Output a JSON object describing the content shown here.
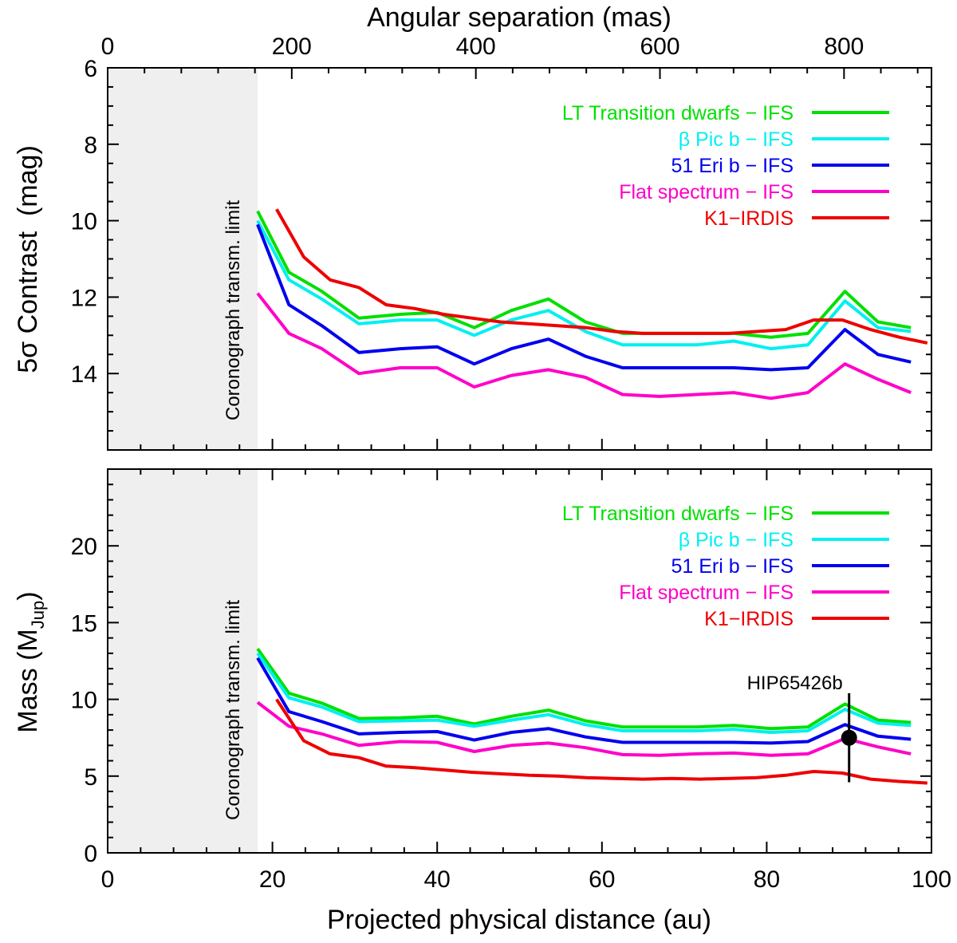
{
  "chart_data": [
    {
      "type": "line",
      "panel": "top",
      "ylabel": "5σ Contrast  (mag)",
      "ylabel_prefix": "5",
      "ylabel_sigma": "σ",
      "ylabel_rest": " Contrast  (mag)",
      "x_top_label": "Angular separation (mas)",
      "x_top_ticks": [
        "0",
        "200",
        "400",
        "600",
        "800"
      ],
      "x_top_tick_values": [
        0,
        200,
        400,
        600,
        800
      ],
      "mas_per_au": 8.95,
      "xlim": [
        0,
        100
      ],
      "ylim": [
        16,
        6
      ],
      "y_inverted": true,
      "y_ticks": [
        "6",
        "8",
        "10",
        "12",
        "14"
      ],
      "y_tick_values": [
        6,
        8,
        10,
        12,
        14
      ],
      "shaded_region": {
        "x_range": [
          0,
          18.2
        ],
        "label": "Coronograph transm. limit"
      },
      "legend_position": "top-right",
      "series": [
        {
          "name": "LT Transition dwarfs − IFS",
          "color": "#00e000",
          "x": [
            18.2,
            22.0,
            26.0,
            30.5,
            35.5,
            40.0,
            44.5,
            49.0,
            53.5,
            58.0,
            62.5,
            67.0,
            71.5,
            76.0,
            80.5,
            85.0,
            89.5,
            93.5,
            97.5
          ],
          "y": [
            9.75,
            11.35,
            11.85,
            12.55,
            12.45,
            12.4,
            12.8,
            12.35,
            12.05,
            12.65,
            12.95,
            12.95,
            12.95,
            12.95,
            13.05,
            12.95,
            11.85,
            12.65,
            12.8
          ]
        },
        {
          "name": "β Pic b − IFS",
          "name_symbol": "β",
          "name_rest": " Pic b − IFS",
          "color": "#00f0f0",
          "x": [
            18.2,
            22.0,
            26.0,
            30.5,
            35.5,
            40.0,
            44.5,
            49.0,
            53.5,
            58.0,
            62.5,
            67.0,
            71.5,
            76.0,
            80.5,
            85.0,
            89.5,
            93.5,
            97.5
          ],
          "y": [
            10.0,
            11.55,
            12.05,
            12.7,
            12.6,
            12.6,
            13.0,
            12.6,
            12.35,
            12.9,
            13.25,
            13.25,
            13.25,
            13.15,
            13.35,
            13.25,
            12.1,
            12.8,
            12.9
          ]
        },
        {
          "name": "51 Eri b − IFS",
          "color": "#0000ee",
          "x": [
            18.2,
            22.0,
            26.0,
            30.5,
            35.5,
            40.0,
            44.5,
            49.0,
            53.5,
            58.0,
            62.5,
            67.0,
            71.5,
            76.0,
            80.5,
            85.0,
            89.5,
            93.5,
            97.5
          ],
          "y": [
            10.1,
            12.2,
            12.75,
            13.45,
            13.35,
            13.3,
            13.75,
            13.35,
            13.1,
            13.55,
            13.85,
            13.85,
            13.85,
            13.85,
            13.9,
            13.85,
            12.85,
            13.5,
            13.7
          ]
        },
        {
          "name": "Flat spectrum − IFS",
          "color": "#ff00c8",
          "x": [
            18.2,
            22.0,
            26.0,
            30.5,
            35.5,
            40.0,
            44.5,
            49.0,
            53.5,
            58.0,
            62.5,
            67.0,
            71.5,
            76.0,
            80.5,
            85.0,
            89.5,
            93.5,
            97.5
          ],
          "y": [
            11.9,
            12.95,
            13.35,
            14.0,
            13.85,
            13.85,
            14.35,
            14.05,
            13.9,
            14.1,
            14.55,
            14.6,
            14.55,
            14.5,
            14.65,
            14.5,
            13.75,
            14.15,
            14.5
          ]
        },
        {
          "name": "K1−IRDIS",
          "color": "#ee0000",
          "x": [
            20.5,
            23.8,
            27.0,
            30.5,
            33.8,
            37.3,
            40.8,
            44.2,
            47.7,
            51.2,
            54.6,
            58.1,
            61.5,
            65.0,
            68.5,
            71.9,
            75.4,
            78.8,
            82.3,
            85.7,
            89.2,
            92.6,
            96.1,
            99.5
          ],
          "y": [
            9.7,
            10.95,
            11.55,
            11.75,
            12.2,
            12.3,
            12.45,
            12.55,
            12.65,
            12.7,
            12.75,
            12.8,
            12.9,
            12.95,
            12.95,
            12.95,
            12.95,
            12.9,
            12.85,
            12.6,
            12.6,
            12.85,
            13.05,
            13.2
          ]
        }
      ]
    },
    {
      "type": "line",
      "panel": "bottom",
      "ylabel": "Mass (MJup)",
      "ylabel_main": "Mass (M",
      "ylabel_sub": "Jup",
      "ylabel_close": ")",
      "xlabel": "Projected physical distance (au)",
      "xlim": [
        0,
        100
      ],
      "x_ticks": [
        "0",
        "20",
        "40",
        "60",
        "80",
        "100"
      ],
      "x_tick_values": [
        0,
        20,
        40,
        60,
        80,
        100
      ],
      "ylim": [
        0,
        25
      ],
      "y_ticks": [
        "0",
        "5",
        "10",
        "15",
        "20"
      ],
      "y_tick_values": [
        0,
        5,
        10,
        15,
        20
      ],
      "shaded_region": {
        "x_range": [
          0,
          18.2
        ],
        "label": "Coronograph transm. limit"
      },
      "legend_position": "top-right",
      "series": [
        {
          "name": "LT Transition dwarfs − IFS",
          "color": "#00e000",
          "x": [
            18.2,
            22.0,
            26.0,
            30.5,
            35.5,
            40.0,
            44.5,
            49.0,
            53.5,
            58.0,
            62.5,
            67.0,
            71.5,
            76.0,
            80.5,
            85.0,
            89.5,
            93.5,
            97.5
          ],
          "y": [
            13.3,
            10.4,
            9.75,
            8.75,
            8.8,
            8.9,
            8.4,
            8.9,
            9.3,
            8.6,
            8.2,
            8.2,
            8.2,
            8.3,
            8.1,
            8.2,
            9.7,
            8.65,
            8.5
          ]
        },
        {
          "name": "β Pic b − IFS",
          "name_symbol": "β",
          "name_rest": " Pic b − IFS",
          "color": "#00f0f0",
          "x": [
            18.2,
            22.0,
            26.0,
            30.5,
            35.5,
            40.0,
            44.5,
            49.0,
            53.5,
            58.0,
            62.5,
            67.0,
            71.5,
            76.0,
            80.5,
            85.0,
            89.5,
            93.5,
            97.5
          ],
          "y": [
            13.0,
            10.1,
            9.5,
            8.55,
            8.6,
            8.65,
            8.25,
            8.65,
            9.0,
            8.35,
            7.95,
            7.95,
            7.95,
            8.05,
            7.85,
            7.95,
            9.35,
            8.45,
            8.3
          ]
        },
        {
          "name": "51 Eri b − IFS",
          "color": "#0000ee",
          "x": [
            18.2,
            22.0,
            26.0,
            30.5,
            35.5,
            40.0,
            44.5,
            49.0,
            53.5,
            58.0,
            62.5,
            67.0,
            71.5,
            76.0,
            80.5,
            85.0,
            89.5,
            93.5,
            97.5
          ],
          "y": [
            12.7,
            9.2,
            8.55,
            7.75,
            7.85,
            7.9,
            7.35,
            7.85,
            8.1,
            7.55,
            7.2,
            7.2,
            7.2,
            7.2,
            7.15,
            7.25,
            8.35,
            7.6,
            7.4
          ]
        },
        {
          "name": "Flat spectrum − IFS",
          "color": "#ff00c8",
          "x": [
            18.2,
            22.0,
            26.0,
            30.5,
            35.5,
            40.0,
            44.5,
            49.0,
            53.5,
            58.0,
            62.5,
            67.0,
            71.5,
            76.0,
            80.5,
            85.0,
            89.5,
            93.5,
            97.5
          ],
          "y": [
            9.8,
            8.25,
            7.75,
            7.0,
            7.25,
            7.2,
            6.6,
            7.0,
            7.15,
            6.85,
            6.4,
            6.35,
            6.45,
            6.5,
            6.35,
            6.45,
            7.45,
            6.9,
            6.45
          ]
        },
        {
          "name": "K1−IRDIS",
          "color": "#ee0000",
          "x": [
            20.5,
            23.8,
            27.0,
            30.5,
            33.8,
            37.3,
            40.8,
            44.2,
            47.7,
            51.2,
            54.6,
            58.1,
            61.5,
            65.0,
            68.5,
            71.9,
            75.4,
            78.8,
            82.3,
            85.7,
            89.2,
            92.6,
            96.1,
            99.5
          ],
          "y": [
            10.0,
            7.3,
            6.45,
            6.2,
            5.65,
            5.55,
            5.4,
            5.25,
            5.15,
            5.05,
            5.0,
            4.9,
            4.85,
            4.8,
            4.85,
            4.8,
            4.85,
            4.9,
            5.05,
            5.3,
            5.2,
            4.8,
            4.65,
            4.55
          ]
        }
      ],
      "annotations": [
        {
          "label": "HIP65426b",
          "x": 90.0,
          "y": 7.5,
          "y_err": [
            4.6,
            10.4
          ]
        }
      ]
    }
  ]
}
